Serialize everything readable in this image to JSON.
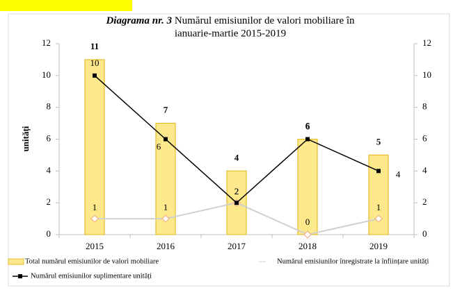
{
  "chart_data": {
    "type": "bar",
    "title_label": "Diagrama nr. 3",
    "title": [
      "Numărul emisiunilor de valori mobiliare în",
      "ianuarie-martie 2015-2019"
    ],
    "y_label": "unități",
    "categories": [
      "2015",
      "2016",
      "2017",
      "2018",
      "2019"
    ],
    "ylim": [
      0,
      12
    ],
    "yticks": [
      0,
      2,
      4,
      6,
      8,
      10,
      12
    ],
    "y2lim": [
      0,
      12
    ],
    "y2ticks": [
      0,
      2,
      4,
      6,
      8,
      10,
      12
    ],
    "series": [
      {
        "name": "Total numărul emisiunilor de valori mobiliare",
        "type": "bar",
        "color": "#fce98c",
        "values": [
          11,
          7,
          4,
          6,
          5
        ]
      },
      {
        "name": "Numărul emisiunilor înregistrate la înființare unități",
        "type": "line",
        "axis": "y2",
        "color": "#d0d0d0",
        "values": [
          1,
          1,
          2,
          0,
          1
        ]
      },
      {
        "name": "Numărul emisiunilor suplimentare unități",
        "type": "line",
        "axis": "y2",
        "color": "#000000",
        "values": [
          10,
          6,
          2,
          6,
          4
        ]
      }
    ]
  }
}
